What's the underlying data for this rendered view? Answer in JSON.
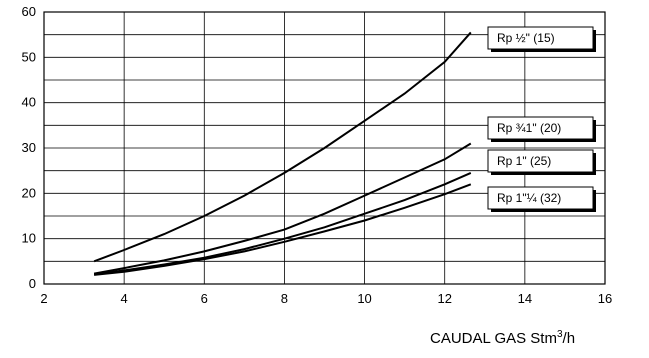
{
  "chart_data": {
    "type": "line",
    "title": "",
    "xlabel": "CAUDAL GAS Stm",
    "xlabel_superscript": "3",
    "xlabel_suffix": "/h",
    "ylabel": "",
    "xlim": [
      2,
      16
    ],
    "ylim": [
      0,
      60
    ],
    "x_ticks": [
      "2",
      "4",
      "6",
      "8",
      "10",
      "12",
      "14",
      "16"
    ],
    "y_ticks": [
      "0",
      "10",
      "20",
      "30",
      "40",
      "50",
      "60"
    ],
    "grid": true,
    "series": [
      {
        "name": "Rp ½\" (15)",
        "x": [
          3.25,
          4,
          5,
          6,
          7,
          8,
          9,
          10,
          11,
          12,
          12.65
        ],
        "y": [
          5,
          7.5,
          11,
          15,
          19.5,
          24.5,
          30,
          36,
          42,
          49,
          55.5
        ]
      },
      {
        "name": "Rp ¾1\" (20)",
        "x": [
          3.25,
          4,
          5,
          6,
          7,
          8,
          9,
          10,
          11,
          12,
          12.65
        ],
        "y": [
          2.3,
          3.5,
          5.2,
          7.2,
          9.5,
          12,
          15.5,
          19.5,
          23.5,
          27.5,
          31
        ]
      },
      {
        "name": "Rp 1\" (25)",
        "x": [
          3.25,
          4,
          5,
          6,
          7,
          8,
          9,
          10,
          11,
          12,
          12.65
        ],
        "y": [
          2.1,
          3,
          4.3,
          5.8,
          7.7,
          10,
          12.5,
          15.5,
          18.5,
          22,
          24.5
        ]
      },
      {
        "name": "Rp 1\"¼ (32)",
        "x": [
          3.25,
          4,
          5,
          6,
          7,
          8,
          9,
          10,
          11,
          12,
          12.65
        ],
        "y": [
          2,
          2.7,
          4,
          5.5,
          7.2,
          9.3,
          11.6,
          14,
          16.8,
          19.8,
          22
        ]
      }
    ],
    "legend": [
      "Rp ½\" (15)",
      "Rp ¾1\" (20)",
      "Rp 1\" (25)",
      "Rp 1\"¼ (32)"
    ]
  }
}
